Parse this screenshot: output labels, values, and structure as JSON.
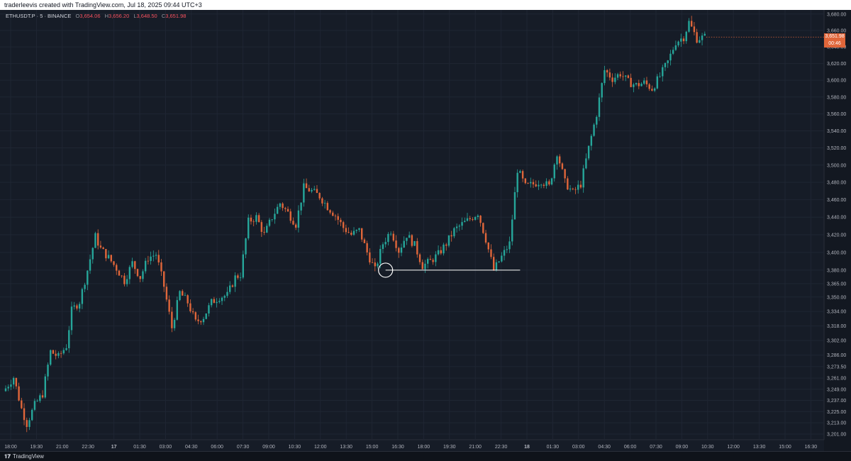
{
  "header": {
    "caption": "traderleevis created with TradingView.com, Jul 18, 2025 09:44 UTC+3"
  },
  "legend": {
    "symbol": "ETHUSDT.P · 5 · BINANCE",
    "o_label": "O",
    "o_value": "3,654.06",
    "h_label": "H",
    "h_value": "3,656.20",
    "l_label": "L",
    "l_value": "3,648.50",
    "c_label": "C",
    "c_value": "3,651.98"
  },
  "last_price": {
    "price": "3,651.98",
    "countdown": "00:46",
    "color": "#e0663a"
  },
  "footer": {
    "logo_glyph": "𝟏𝟕",
    "brand": "TradingView"
  },
  "colors": {
    "background": "#161c27",
    "grid": "#1f2633",
    "up": "#26a69a",
    "down": "#e0663a",
    "axis_text": "#b2b5be",
    "annotation": "#ffffff"
  },
  "chart_data": {
    "type": "candlestick",
    "symbol": "ETHUSDT.P",
    "interval": "5",
    "exchange": "BINANCE",
    "y_scale": "logarithmic",
    "ylim": [
      3195,
      3685
    ],
    "y_ticks": [
      "3,680.00",
      "3,660.00",
      "3,640.00",
      "3,620.00",
      "3,600.00",
      "3,580.00",
      "3,560.00",
      "3,540.00",
      "3,520.00",
      "3,500.00",
      "3,480.00",
      "3,460.00",
      "3,440.00",
      "3,420.00",
      "3,400.00",
      "3,380.00",
      "3,365.00",
      "3,350.00",
      "3,334.00",
      "3,318.00",
      "3,302.00",
      "3,286.00",
      "3,273.50",
      "3,261.00",
      "3,249.00",
      "3,237.00",
      "3,225.00",
      "3,213.00",
      "3,201.00"
    ],
    "x_ticks": [
      "18:00",
      "19:30",
      "21:00",
      "22:30",
      "17",
      "01:30",
      "03:00",
      "04:30",
      "06:00",
      "07:30",
      "09:00",
      "10:30",
      "12:00",
      "13:30",
      "15:00",
      "16:30",
      "18:00",
      "19:30",
      "21:00",
      "22:30",
      "18",
      "01:30",
      "03:00",
      "04:30",
      "06:00",
      "07:30",
      "09:00",
      "10:30",
      "12:00",
      "13:30",
      "15:00",
      "16:30"
    ],
    "price_path": [
      [
        0,
        3250
      ],
      [
        3,
        3262
      ],
      [
        6,
        3228
      ],
      [
        8,
        3212
      ],
      [
        11,
        3232
      ],
      [
        14,
        3244
      ],
      [
        17,
        3290
      ],
      [
        20,
        3284
      ],
      [
        23,
        3296
      ],
      [
        25,
        3335
      ],
      [
        28,
        3345
      ],
      [
        31,
        3380
      ],
      [
        34,
        3418
      ],
      [
        36,
        3404
      ],
      [
        39,
        3394
      ],
      [
        42,
        3382
      ],
      [
        45,
        3368
      ],
      [
        48,
        3388
      ],
      [
        51,
        3372
      ],
      [
        54,
        3394
      ],
      [
        57,
        3398
      ],
      [
        60,
        3362
      ],
      [
        63,
        3316
      ],
      [
        66,
        3355
      ],
      [
        69,
        3344
      ],
      [
        72,
        3322
      ],
      [
        75,
        3328
      ],
      [
        78,
        3344
      ],
      [
        81,
        3350
      ],
      [
        84,
        3352
      ],
      [
        87,
        3372
      ],
      [
        89,
        3375
      ],
      [
        92,
        3435
      ],
      [
        95,
        3440
      ],
      [
        98,
        3420
      ],
      [
        101,
        3440
      ],
      [
        104,
        3456
      ],
      [
        107,
        3445
      ],
      [
        110,
        3432
      ],
      [
        113,
        3474
      ],
      [
        116,
        3470
      ],
      [
        119,
        3464
      ],
      [
        122,
        3452
      ],
      [
        125,
        3442
      ],
      [
        128,
        3428
      ],
      [
        131,
        3420
      ],
      [
        134,
        3425
      ],
      [
        137,
        3400
      ],
      [
        140,
        3380
      ],
      [
        143,
        3410
      ],
      [
        146,
        3425
      ],
      [
        149,
        3402
      ],
      [
        152,
        3420
      ],
      [
        155,
        3408
      ],
      [
        158,
        3385
      ],
      [
        161,
        3390
      ],
      [
        164,
        3398
      ],
      [
        167,
        3410
      ],
      [
        170,
        3425
      ],
      [
        173,
        3432
      ],
      [
        176,
        3438
      ],
      [
        179,
        3445
      ],
      [
        182,
        3415
      ],
      [
        185,
        3380
      ],
      [
        188,
        3395
      ],
      [
        191,
        3410
      ],
      [
        194,
        3495
      ],
      [
        197,
        3475
      ],
      [
        200,
        3478
      ],
      [
        203,
        3482
      ],
      [
        206,
        3475
      ],
      [
        209,
        3515
      ],
      [
        212,
        3480
      ],
      [
        215,
        3468
      ],
      [
        218,
        3478
      ],
      [
        221,
        3520
      ],
      [
        224,
        3560
      ],
      [
        227,
        3612
      ],
      [
        230,
        3602
      ],
      [
        233,
        3608
      ],
      [
        236,
        3598
      ],
      [
        239,
        3594
      ],
      [
        242,
        3597
      ],
      [
        245,
        3590
      ],
      [
        248,
        3605
      ],
      [
        251,
        3622
      ],
      [
        254,
        3646
      ],
      [
        257,
        3652
      ],
      [
        259,
        3670
      ],
      [
        262,
        3650
      ],
      [
        265,
        3652
      ]
    ],
    "annotations": [
      {
        "type": "circle",
        "time_index": 144,
        "price": 3380
      },
      {
        "type": "horizontal_ray",
        "from_index": 144,
        "to_index": 195,
        "price": 3380
      }
    ]
  }
}
